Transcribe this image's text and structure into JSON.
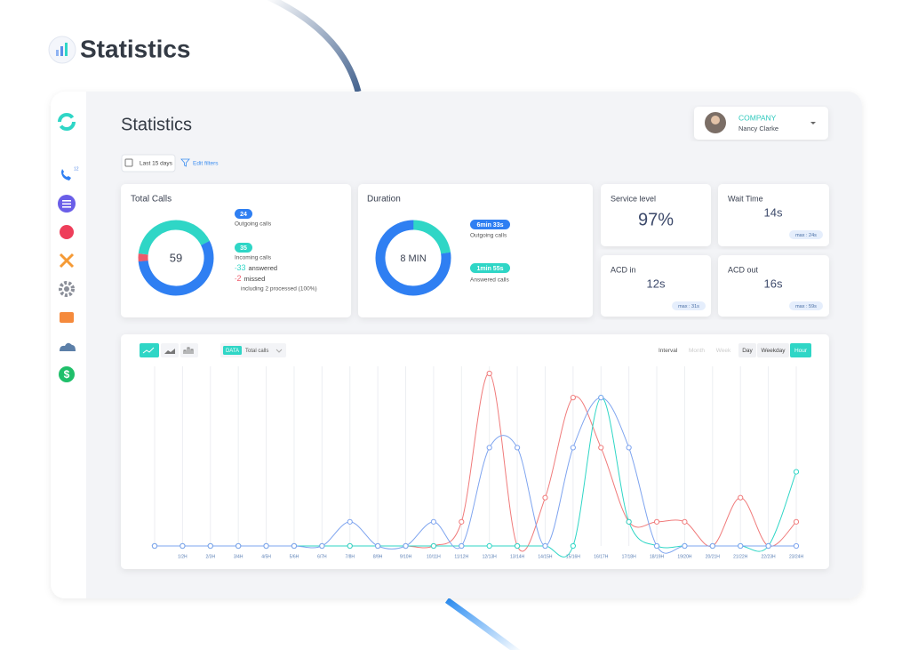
{
  "header": {
    "title": "Statistics"
  },
  "sidebar": {
    "badge": "12"
  },
  "dashboard": {
    "title": "Statistics",
    "user": {
      "company": "COMPANY",
      "name": "Nancy Clarke"
    },
    "filters": {
      "period": "Last 15 days",
      "edit": "Edit filters"
    }
  },
  "total_calls": {
    "title": "Total Calls",
    "total": 59,
    "outgoing": {
      "count": 24,
      "text": "Outgoing calls"
    },
    "incoming": {
      "count": 35,
      "text": "Incoming calls"
    },
    "answered": {
      "bullet": "-",
      "count": 33,
      "text": "answered"
    },
    "missed": {
      "bullet": "-",
      "count": 2,
      "text": "missed"
    },
    "note": "including 2 processed (100%)"
  },
  "duration": {
    "title": "Duration",
    "total": "8 MIN",
    "outgoing": {
      "label": "6min 33s",
      "seconds": 393,
      "text": "Outgoing calls"
    },
    "answered": {
      "label": "1min 55s",
      "seconds": 115,
      "text": "Answered calls"
    }
  },
  "kpis": [
    {
      "title": "Service level",
      "value": "97%"
    },
    {
      "title": "Wait Time",
      "value": "14s",
      "max": "max : 24s"
    },
    {
      "title": "ACD in",
      "value": "12s",
      "max": "max : 31s"
    },
    {
      "title": "ACD out",
      "value": "16s",
      "max": "max : 59s"
    }
  ],
  "chart_toolbar": {
    "data_tag": "DATA",
    "data_value": "Total calls",
    "interval": "Interval",
    "options": [
      "Month",
      "Week",
      "Day",
      "Weekday",
      "Hour"
    ],
    "active": "Hour"
  },
  "chart_data": {
    "type": "line",
    "categories": [
      null,
      "1/2H",
      "2/3H",
      "3/4H",
      "4/5H",
      "5/6H",
      "6/7H",
      "7/8H",
      "8/9H",
      "9/10H",
      "10/11H",
      "11/12H",
      "12/13H",
      "13/14H",
      "14/15H",
      "15/16H",
      "16/17H",
      "17/18H",
      "18/19H",
      "19/20H",
      "20/21H",
      "21/22H",
      "22/23H",
      "23/24H"
    ],
    "series": [
      {
        "color": "#f07b7b",
        "values": [
          0,
          0,
          0,
          0,
          0,
          0,
          0,
          0,
          0,
          0,
          0,
          1.4,
          10,
          0,
          2.8,
          8.6,
          5.7,
          1.4,
          1.4,
          1.4,
          0,
          2.8,
          0,
          1.4
        ]
      },
      {
        "color": "#2fd6c6",
        "values": [
          0,
          0,
          0,
          0,
          0,
          0,
          0,
          0,
          0,
          0,
          0,
          0,
          0,
          0,
          0,
          0,
          8.6,
          1.4,
          0,
          0,
          0,
          0,
          0,
          4.3
        ]
      },
      {
        "color": "#7ea4ef",
        "values": [
          0,
          0,
          0,
          0,
          0,
          0,
          0,
          1.4,
          0,
          0,
          1.4,
          0,
          5.7,
          5.7,
          0,
          5.7,
          8.6,
          5.7,
          0,
          0,
          0,
          0,
          0,
          0
        ]
      }
    ],
    "grid": true
  }
}
